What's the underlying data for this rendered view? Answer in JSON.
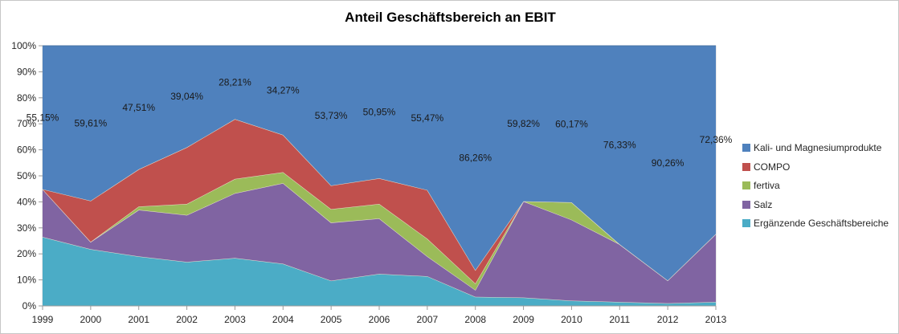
{
  "title": "Anteil Geschäftsbereich an EBIT",
  "chart_data": {
    "type": "area",
    "stacking": "percent",
    "title": "Anteil Geschäftsbereich an EBIT",
    "xlabel": "",
    "ylabel": "",
    "ylim": [
      0,
      100
    ],
    "grid": false,
    "legend_position": "right",
    "x_labels": [
      "1999",
      "2000",
      "2001",
      "2002",
      "2003",
      "2004",
      "2005",
      "2006",
      "2007",
      "2008",
      "2009",
      "2010",
      "2011",
      "2012",
      "2013"
    ],
    "y_tick_labels": [
      "0%",
      "10%",
      "20%",
      "30%",
      "40%",
      "50%",
      "60%",
      "70%",
      "80%",
      "90%",
      "100%"
    ],
    "series_bottom_to_top": [
      {
        "name": "Ergänzende Geschäftsbereiche",
        "color": "#4BACC6",
        "values": [
          26.5,
          21.8,
          19.0,
          16.9,
          18.4,
          16.2,
          9.7,
          12.3,
          11.4,
          3.5,
          3.2,
          2.0,
          1.5,
          1.0,
          1.5
        ]
      },
      {
        "name": "Salz",
        "color": "#8064A2",
        "values": [
          18.35,
          2.8,
          17.9,
          18.0,
          24.9,
          31.0,
          22.3,
          21.3,
          7.6,
          2.6,
          36.98,
          31.13,
          22.17,
          8.74,
          26.14
        ]
      },
      {
        "name": "fertiva",
        "color": "#9BBB59",
        "values": [
          0,
          0,
          1.3,
          4.3,
          5.5,
          4.2,
          5.2,
          5.6,
          6.8,
          2.5,
          0,
          6.7,
          0,
          0,
          0
        ]
      },
      {
        "name": "COMPO",
        "color": "#C0504D",
        "values": [
          0,
          15.79,
          14.29,
          21.76,
          22.99,
          14.33,
          9.07,
          9.85,
          18.73,
          5.14,
          0,
          0,
          0,
          0,
          0
        ]
      },
      {
        "name": "Kali- und Magnesiumprodukte",
        "color": "#4F81BD",
        "values": [
          55.15,
          59.61,
          47.51,
          39.04,
          28.21,
          34.27,
          53.73,
          50.95,
          55.47,
          86.26,
          59.82,
          60.17,
          76.33,
          90.26,
          72.36
        ],
        "data_labels": [
          "55,15%",
          "59,61%",
          "47,51%",
          "39,04%",
          "28,21%",
          "34,27%",
          "53,73%",
          "50,95%",
          "55,47%",
          "86,26%",
          "59,82%",
          "60,17%",
          "76,33%",
          "90,26%",
          "72,36%"
        ]
      }
    ]
  },
  "legend": [
    {
      "label": "Kali- und Magnesiumprodukte",
      "color": "#4F81BD"
    },
    {
      "label": "COMPO",
      "color": "#C0504D"
    },
    {
      "label": "fertiva",
      "color": "#9BBB59"
    },
    {
      "label": "Salz",
      "color": "#8064A2"
    },
    {
      "label": "Ergänzende Geschäftsbereiche",
      "color": "#4BACC6"
    }
  ],
  "colors": {
    "background": "#FFFFFF",
    "chart_border": "#C6C6C6",
    "plot_border": "#D2D2D2",
    "axis": "#9B9B9B",
    "boundary_line": "#E9E3CF",
    "top_border": "#4472A4",
    "text": "#262626"
  }
}
